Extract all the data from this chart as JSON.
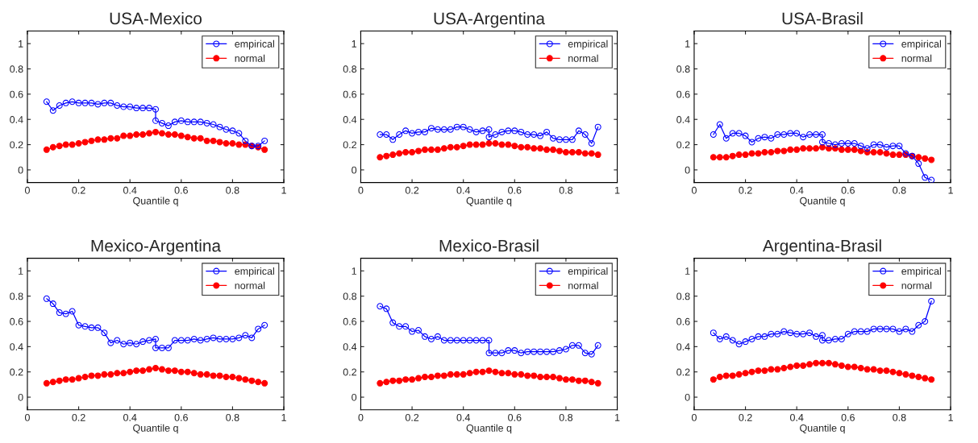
{
  "chart_data": [
    {
      "type": "line",
      "title": "USA-Mexico",
      "xlabel": "Quantile q",
      "xlim": [
        0,
        1
      ],
      "xticks": [
        0,
        0.2,
        0.4,
        0.6,
        0.8,
        1
      ],
      "ylim": [
        -0.1,
        1.1
      ],
      "yticks": [
        0,
        0.2,
        0.4,
        0.6,
        0.8,
        1
      ],
      "grid": false,
      "legend": "top right",
      "series": [
        {
          "name": "empirical",
          "color": "#0000ff",
          "marker": "circle",
          "x": [
            0.075,
            0.1,
            0.125,
            0.15,
            0.175,
            0.2,
            0.225,
            0.25,
            0.275,
            0.3,
            0.325,
            0.35,
            0.375,
            0.4,
            0.425,
            0.45,
            0.475,
            0.5,
            0.5,
            0.525,
            0.55,
            0.575,
            0.6,
            0.625,
            0.65,
            0.675,
            0.7,
            0.725,
            0.75,
            0.775,
            0.8,
            0.825,
            0.85,
            0.875,
            0.9,
            0.925
          ],
          "values": [
            0.54,
            0.47,
            0.51,
            0.53,
            0.54,
            0.53,
            0.53,
            0.53,
            0.52,
            0.53,
            0.53,
            0.51,
            0.5,
            0.5,
            0.49,
            0.49,
            0.49,
            0.48,
            0.39,
            0.37,
            0.35,
            0.38,
            0.39,
            0.38,
            0.38,
            0.38,
            0.37,
            0.36,
            0.34,
            0.32,
            0.31,
            0.29,
            0.23,
            0.19,
            0.19,
            0.23
          ]
        },
        {
          "name": "normal",
          "color": "#ff0000",
          "marker": "circle",
          "x": [
            0.075,
            0.1,
            0.125,
            0.15,
            0.175,
            0.2,
            0.225,
            0.25,
            0.275,
            0.3,
            0.325,
            0.35,
            0.375,
            0.4,
            0.425,
            0.45,
            0.475,
            0.5,
            0.525,
            0.55,
            0.575,
            0.6,
            0.625,
            0.65,
            0.675,
            0.7,
            0.725,
            0.75,
            0.775,
            0.8,
            0.825,
            0.85,
            0.875,
            0.9,
            0.925
          ],
          "values": [
            0.16,
            0.18,
            0.19,
            0.2,
            0.2,
            0.21,
            0.22,
            0.23,
            0.24,
            0.24,
            0.25,
            0.25,
            0.27,
            0.27,
            0.28,
            0.28,
            0.29,
            0.3,
            0.29,
            0.28,
            0.28,
            0.27,
            0.26,
            0.25,
            0.25,
            0.23,
            0.23,
            0.22,
            0.21,
            0.21,
            0.2,
            0.2,
            0.19,
            0.18,
            0.16
          ]
        }
      ]
    },
    {
      "type": "line",
      "title": "USA-Argentina",
      "xlabel": "Quantile q",
      "xlim": [
        0,
        1
      ],
      "xticks": [
        0,
        0.2,
        0.4,
        0.6,
        0.8,
        1
      ],
      "ylim": [
        -0.1,
        1.1
      ],
      "yticks": [
        0,
        0.2,
        0.4,
        0.6,
        0.8,
        1
      ],
      "grid": false,
      "legend": "top right",
      "series": [
        {
          "name": "empirical",
          "color": "#0000ff",
          "marker": "circle",
          "x": [
            0.075,
            0.1,
            0.125,
            0.15,
            0.175,
            0.2,
            0.225,
            0.25,
            0.275,
            0.3,
            0.325,
            0.35,
            0.375,
            0.4,
            0.425,
            0.45,
            0.475,
            0.5,
            0.5,
            0.525,
            0.55,
            0.575,
            0.6,
            0.625,
            0.65,
            0.675,
            0.7,
            0.725,
            0.75,
            0.775,
            0.8,
            0.825,
            0.85,
            0.875,
            0.9,
            0.925
          ],
          "values": [
            0.28,
            0.28,
            0.24,
            0.28,
            0.31,
            0.29,
            0.3,
            0.3,
            0.33,
            0.32,
            0.32,
            0.32,
            0.34,
            0.34,
            0.32,
            0.3,
            0.31,
            0.32,
            0.26,
            0.28,
            0.3,
            0.31,
            0.31,
            0.3,
            0.28,
            0.28,
            0.27,
            0.3,
            0.25,
            0.24,
            0.24,
            0.24,
            0.31,
            0.28,
            0.21,
            0.34
          ]
        },
        {
          "name": "normal",
          "color": "#ff0000",
          "marker": "circle",
          "x": [
            0.075,
            0.1,
            0.125,
            0.15,
            0.175,
            0.2,
            0.225,
            0.25,
            0.275,
            0.3,
            0.325,
            0.35,
            0.375,
            0.4,
            0.425,
            0.45,
            0.475,
            0.5,
            0.525,
            0.55,
            0.575,
            0.6,
            0.625,
            0.65,
            0.675,
            0.7,
            0.725,
            0.75,
            0.775,
            0.8,
            0.825,
            0.85,
            0.875,
            0.9,
            0.925
          ],
          "values": [
            0.1,
            0.11,
            0.12,
            0.13,
            0.14,
            0.14,
            0.15,
            0.16,
            0.16,
            0.16,
            0.17,
            0.18,
            0.18,
            0.19,
            0.2,
            0.2,
            0.2,
            0.21,
            0.21,
            0.2,
            0.2,
            0.19,
            0.18,
            0.18,
            0.17,
            0.17,
            0.16,
            0.16,
            0.15,
            0.14,
            0.14,
            0.14,
            0.13,
            0.13,
            0.12
          ]
        }
      ]
    },
    {
      "type": "line",
      "title": "USA-Brasil",
      "xlabel": "Quantile q",
      "xlim": [
        0,
        1
      ],
      "xticks": [
        0,
        0.2,
        0.4,
        0.6,
        0.8,
        1
      ],
      "ylim": [
        -0.1,
        1.1
      ],
      "yticks": [
        0,
        0.2,
        0.4,
        0.6,
        0.8,
        1
      ],
      "grid": false,
      "legend": "top right",
      "series": [
        {
          "name": "empirical",
          "color": "#0000ff",
          "marker": "circle",
          "x": [
            0.075,
            0.1,
            0.125,
            0.15,
            0.175,
            0.2,
            0.225,
            0.25,
            0.275,
            0.3,
            0.325,
            0.35,
            0.375,
            0.4,
            0.425,
            0.45,
            0.475,
            0.5,
            0.5,
            0.525,
            0.55,
            0.575,
            0.6,
            0.625,
            0.65,
            0.675,
            0.7,
            0.725,
            0.75,
            0.775,
            0.8,
            0.825,
            0.85,
            0.875,
            0.9,
            0.925
          ],
          "values": [
            0.28,
            0.36,
            0.25,
            0.29,
            0.29,
            0.27,
            0.22,
            0.25,
            0.26,
            0.25,
            0.28,
            0.28,
            0.29,
            0.29,
            0.26,
            0.28,
            0.28,
            0.28,
            0.22,
            0.21,
            0.2,
            0.21,
            0.21,
            0.21,
            0.19,
            0.17,
            0.2,
            0.2,
            0.18,
            0.19,
            0.19,
            0.13,
            0.11,
            0.05,
            -0.06,
            -0.08
          ]
        },
        {
          "name": "normal",
          "color": "#ff0000",
          "marker": "circle",
          "x": [
            0.075,
            0.1,
            0.125,
            0.15,
            0.175,
            0.2,
            0.225,
            0.25,
            0.275,
            0.3,
            0.325,
            0.35,
            0.375,
            0.4,
            0.425,
            0.45,
            0.475,
            0.5,
            0.525,
            0.55,
            0.575,
            0.6,
            0.625,
            0.65,
            0.675,
            0.7,
            0.725,
            0.75,
            0.775,
            0.8,
            0.825,
            0.85,
            0.875,
            0.9,
            0.925
          ],
          "values": [
            0.1,
            0.1,
            0.1,
            0.11,
            0.12,
            0.12,
            0.13,
            0.13,
            0.14,
            0.14,
            0.15,
            0.15,
            0.16,
            0.16,
            0.17,
            0.17,
            0.17,
            0.18,
            0.17,
            0.17,
            0.16,
            0.16,
            0.16,
            0.15,
            0.14,
            0.14,
            0.14,
            0.13,
            0.12,
            0.12,
            0.12,
            0.11,
            0.1,
            0.09,
            0.08
          ]
        }
      ]
    },
    {
      "type": "line",
      "title": "Mexico-Argentina",
      "xlabel": "Quantile q",
      "xlim": [
        0,
        1
      ],
      "xticks": [
        0,
        0.2,
        0.4,
        0.6,
        0.8,
        1
      ],
      "ylim": [
        -0.1,
        1.1
      ],
      "yticks": [
        0,
        0.2,
        0.4,
        0.6,
        0.8,
        1
      ],
      "grid": false,
      "legend": "top right",
      "series": [
        {
          "name": "empirical",
          "color": "#0000ff",
          "marker": "circle",
          "x": [
            0.075,
            0.1,
            0.125,
            0.15,
            0.175,
            0.2,
            0.225,
            0.25,
            0.275,
            0.3,
            0.325,
            0.35,
            0.375,
            0.4,
            0.425,
            0.45,
            0.475,
            0.5,
            0.5,
            0.525,
            0.55,
            0.575,
            0.6,
            0.625,
            0.65,
            0.675,
            0.7,
            0.725,
            0.75,
            0.775,
            0.8,
            0.825,
            0.85,
            0.875,
            0.9,
            0.925
          ],
          "values": [
            0.78,
            0.74,
            0.67,
            0.66,
            0.68,
            0.57,
            0.56,
            0.55,
            0.55,
            0.51,
            0.43,
            0.45,
            0.42,
            0.43,
            0.42,
            0.44,
            0.45,
            0.46,
            0.39,
            0.39,
            0.39,
            0.45,
            0.45,
            0.45,
            0.46,
            0.45,
            0.46,
            0.47,
            0.46,
            0.46,
            0.46,
            0.47,
            0.49,
            0.47,
            0.54,
            0.57
          ]
        },
        {
          "name": "normal",
          "color": "#ff0000",
          "marker": "circle",
          "x": [
            0.075,
            0.1,
            0.125,
            0.15,
            0.175,
            0.2,
            0.225,
            0.25,
            0.275,
            0.3,
            0.325,
            0.35,
            0.375,
            0.4,
            0.425,
            0.45,
            0.475,
            0.5,
            0.525,
            0.55,
            0.575,
            0.6,
            0.625,
            0.65,
            0.675,
            0.7,
            0.725,
            0.75,
            0.775,
            0.8,
            0.825,
            0.85,
            0.875,
            0.9,
            0.925
          ],
          "values": [
            0.11,
            0.12,
            0.13,
            0.14,
            0.14,
            0.15,
            0.16,
            0.17,
            0.17,
            0.18,
            0.18,
            0.19,
            0.19,
            0.2,
            0.21,
            0.21,
            0.22,
            0.23,
            0.22,
            0.21,
            0.21,
            0.2,
            0.2,
            0.19,
            0.18,
            0.18,
            0.17,
            0.17,
            0.16,
            0.16,
            0.15,
            0.14,
            0.13,
            0.12,
            0.11
          ]
        }
      ]
    },
    {
      "type": "line",
      "title": "Mexico-Brasil",
      "xlabel": "Quantile q",
      "xlim": [
        0,
        1
      ],
      "xticks": [
        0,
        0.2,
        0.4,
        0.6,
        0.8,
        1
      ],
      "ylim": [
        -0.1,
        1.1
      ],
      "yticks": [
        0,
        0.2,
        0.4,
        0.6,
        0.8,
        1
      ],
      "grid": false,
      "legend": "top right",
      "series": [
        {
          "name": "empirical",
          "color": "#0000ff",
          "marker": "circle",
          "x": [
            0.075,
            0.1,
            0.125,
            0.15,
            0.175,
            0.2,
            0.225,
            0.25,
            0.275,
            0.3,
            0.325,
            0.35,
            0.375,
            0.4,
            0.425,
            0.45,
            0.475,
            0.5,
            0.5,
            0.525,
            0.55,
            0.575,
            0.6,
            0.625,
            0.65,
            0.675,
            0.7,
            0.725,
            0.75,
            0.775,
            0.8,
            0.825,
            0.85,
            0.875,
            0.9,
            0.925
          ],
          "values": [
            0.72,
            0.7,
            0.59,
            0.56,
            0.56,
            0.52,
            0.53,
            0.48,
            0.46,
            0.48,
            0.45,
            0.45,
            0.45,
            0.45,
            0.45,
            0.45,
            0.45,
            0.45,
            0.35,
            0.35,
            0.35,
            0.37,
            0.37,
            0.35,
            0.36,
            0.36,
            0.36,
            0.36,
            0.36,
            0.37,
            0.38,
            0.41,
            0.41,
            0.35,
            0.34,
            0.41
          ]
        },
        {
          "name": "normal",
          "color": "#ff0000",
          "marker": "circle",
          "x": [
            0.075,
            0.1,
            0.125,
            0.15,
            0.175,
            0.2,
            0.225,
            0.25,
            0.275,
            0.3,
            0.325,
            0.35,
            0.375,
            0.4,
            0.425,
            0.45,
            0.475,
            0.5,
            0.525,
            0.55,
            0.575,
            0.6,
            0.625,
            0.65,
            0.675,
            0.7,
            0.725,
            0.75,
            0.775,
            0.8,
            0.825,
            0.85,
            0.875,
            0.9,
            0.925
          ],
          "values": [
            0.11,
            0.12,
            0.13,
            0.13,
            0.14,
            0.14,
            0.15,
            0.16,
            0.16,
            0.17,
            0.17,
            0.18,
            0.18,
            0.18,
            0.19,
            0.2,
            0.2,
            0.21,
            0.2,
            0.19,
            0.19,
            0.18,
            0.18,
            0.17,
            0.17,
            0.16,
            0.16,
            0.16,
            0.15,
            0.14,
            0.14,
            0.13,
            0.13,
            0.12,
            0.11
          ]
        }
      ]
    },
    {
      "type": "line",
      "title": "Argentina-Brasil",
      "xlabel": "Quantile q",
      "xlim": [
        0,
        1
      ],
      "xticks": [
        0,
        0.2,
        0.4,
        0.6,
        0.8,
        1
      ],
      "ylim": [
        -0.1,
        1.1
      ],
      "yticks": [
        0,
        0.2,
        0.4,
        0.6,
        0.8,
        1
      ],
      "grid": false,
      "legend": "top right",
      "series": [
        {
          "name": "empirical",
          "color": "#0000ff",
          "marker": "circle",
          "x": [
            0.075,
            0.1,
            0.125,
            0.15,
            0.175,
            0.2,
            0.225,
            0.25,
            0.275,
            0.3,
            0.325,
            0.35,
            0.375,
            0.4,
            0.425,
            0.45,
            0.475,
            0.5,
            0.5,
            0.525,
            0.55,
            0.575,
            0.6,
            0.625,
            0.65,
            0.675,
            0.7,
            0.725,
            0.75,
            0.775,
            0.8,
            0.825,
            0.85,
            0.875,
            0.9,
            0.925
          ],
          "values": [
            0.51,
            0.46,
            0.48,
            0.45,
            0.42,
            0.44,
            0.46,
            0.48,
            0.48,
            0.5,
            0.5,
            0.52,
            0.51,
            0.5,
            0.5,
            0.51,
            0.48,
            0.49,
            0.45,
            0.45,
            0.46,
            0.46,
            0.5,
            0.52,
            0.52,
            0.52,
            0.54,
            0.54,
            0.54,
            0.54,
            0.52,
            0.54,
            0.52,
            0.57,
            0.6,
            0.76
          ]
        },
        {
          "name": "normal",
          "color": "#ff0000",
          "marker": "circle",
          "x": [
            0.075,
            0.1,
            0.125,
            0.15,
            0.175,
            0.2,
            0.225,
            0.25,
            0.275,
            0.3,
            0.325,
            0.35,
            0.375,
            0.4,
            0.425,
            0.45,
            0.475,
            0.5,
            0.525,
            0.55,
            0.575,
            0.6,
            0.625,
            0.65,
            0.675,
            0.7,
            0.725,
            0.75,
            0.775,
            0.8,
            0.825,
            0.85,
            0.875,
            0.9,
            0.925
          ],
          "values": [
            0.14,
            0.16,
            0.17,
            0.17,
            0.18,
            0.19,
            0.2,
            0.21,
            0.21,
            0.22,
            0.22,
            0.23,
            0.24,
            0.25,
            0.25,
            0.26,
            0.27,
            0.27,
            0.27,
            0.26,
            0.25,
            0.24,
            0.24,
            0.23,
            0.22,
            0.22,
            0.21,
            0.21,
            0.2,
            0.19,
            0.18,
            0.17,
            0.16,
            0.15,
            0.14
          ]
        }
      ]
    }
  ]
}
